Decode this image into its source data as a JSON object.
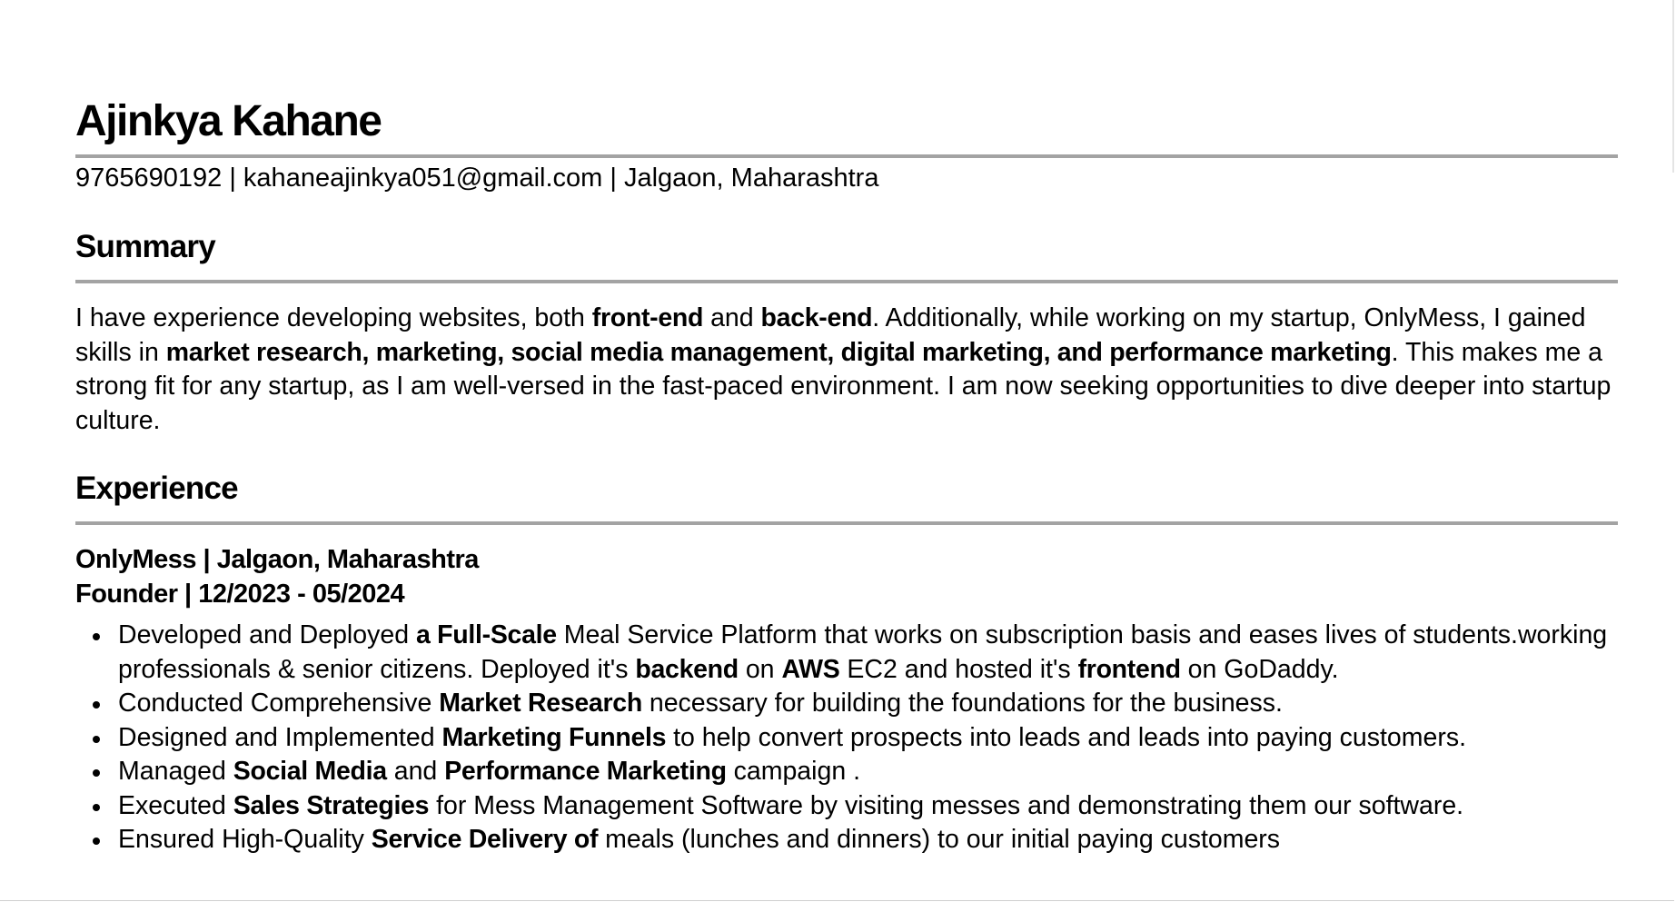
{
  "header": {
    "name": "Ajinkya Kahane",
    "contact": "9765690192 | kahaneajinkya051@gmail.com | Jalgaon, Maharashtra"
  },
  "summary": {
    "title": "Summary",
    "segments": [
      {
        "text": "I have experience developing websites, both ",
        "bold": false
      },
      {
        "text": "front-end",
        "bold": true
      },
      {
        "text": " and ",
        "bold": false
      },
      {
        "text": "back-end",
        "bold": true
      },
      {
        "text": ". Additionally, while working on my startup, OnlyMess, I gained skills in ",
        "bold": false
      },
      {
        "text": "market research, marketing, social media management, digital marketing, and performance marketing",
        "bold": true
      },
      {
        "text": ". This makes me a strong fit for any startup, as I am well-versed in the fast-paced environment. I am now seeking opportunities to dive deeper into startup culture.",
        "bold": false
      }
    ]
  },
  "experience": {
    "title": "Experience",
    "jobs": [
      {
        "company_line": "OnlyMess | Jalgaon, Maharashtra",
        "role_line": "Founder | 12/2023 - 05/2024",
        "bullets": [
          [
            {
              "text": "Developed and Deployed ",
              "bold": false
            },
            {
              "text": "a Full-Scale",
              "bold": true
            },
            {
              "text": " Meal Service Platform that works on subscription basis and eases lives of students.working professionals & senior citizens. Deployed it's ",
              "bold": false
            },
            {
              "text": "backend",
              "bold": true
            },
            {
              "text": " on ",
              "bold": false
            },
            {
              "text": "AWS",
              "bold": true
            },
            {
              "text": " EC2 and hosted it's ",
              "bold": false
            },
            {
              "text": "frontend",
              "bold": true
            },
            {
              "text": " on GoDaddy.",
              "bold": false
            }
          ],
          [
            {
              "text": "Conducted Comprehensive ",
              "bold": false
            },
            {
              "text": "Market Research",
              "bold": true
            },
            {
              "text": " necessary for building the foundations for the business.",
              "bold": false
            }
          ],
          [
            {
              "text": "Designed and Implemented ",
              "bold": false
            },
            {
              "text": "Marketing Funnels",
              "bold": true
            },
            {
              "text": " to help convert prospects into leads and leads into paying customers.",
              "bold": false
            }
          ],
          [
            {
              "text": "Managed ",
              "bold": false
            },
            {
              "text": "Social Media",
              "bold": true
            },
            {
              "text": " and ",
              "bold": false
            },
            {
              "text": "Performance Marketing",
              "bold": true
            },
            {
              "text": " campaign .",
              "bold": false
            }
          ],
          [
            {
              "text": "Executed ",
              "bold": false
            },
            {
              "text": "Sales Strategies",
              "bold": true
            },
            {
              "text": " for Mess Management Software by visiting messes and demonstrating them our software.",
              "bold": false
            }
          ],
          [
            {
              "text": "Ensured High-Quality ",
              "bold": false
            },
            {
              "text": "Service Delivery of",
              "bold": true
            },
            {
              "text": " meals (lunches and dinners) to our initial paying customers",
              "bold": false
            }
          ]
        ]
      }
    ]
  }
}
